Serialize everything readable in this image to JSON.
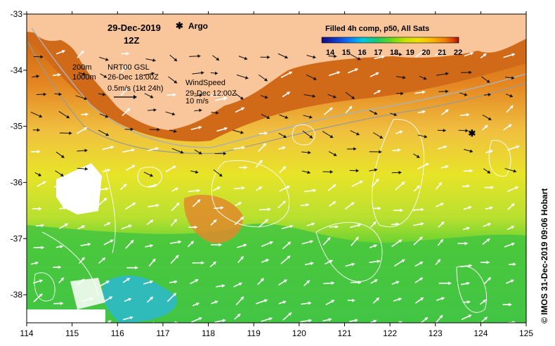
{
  "map": {
    "date": "29-Dec-2019",
    "hour": "12Z",
    "argo_label": "Argo",
    "argo_symbol": "✱",
    "argo_color": "#e020e0",
    "argo_lon": 123.8,
    "argo_lat": -35.12,
    "depth_labels": [
      "200m",
      "1000m"
    ],
    "current_source": "NRT00 GSL",
    "current_time": "26-Dec 18:00Z",
    "current_scale": "0.5m/s (1kt 24h)",
    "wind_title": "WindSpeed",
    "wind_time": "29-Dec 12:00Z",
    "wind_scale": "10 m/s",
    "land_color": "#f9c69c",
    "axes": {
      "lon_min": 114,
      "lon_max": 125,
      "lat_min": -38.5,
      "lat_max": -33,
      "lon_ticks": [
        "114",
        "115",
        "116",
        "117",
        "118",
        "119",
        "120",
        "121",
        "122",
        "123",
        "124",
        "125"
      ],
      "lat_ticks": [
        "-33",
        "-34",
        "-35",
        "-36",
        "-37",
        "-38"
      ]
    }
  },
  "colorbar": {
    "title": "Filled 4h comp, p50, All Sats",
    "tick_labels": [
      "14",
      "15",
      "16",
      "17",
      "18",
      "19",
      "20",
      "21",
      "22"
    ],
    "colors": [
      "#1a0a80",
      "#1036c8",
      "#0a78ff",
      "#00c8e0",
      "#18c870",
      "#60d820",
      "#c0e000",
      "#f0e000",
      "#f8b800",
      "#f08000",
      "#d84000",
      "#a01010"
    ]
  },
  "credit": "© IMOS 31-Dec-2019 09:06 Hobart"
}
